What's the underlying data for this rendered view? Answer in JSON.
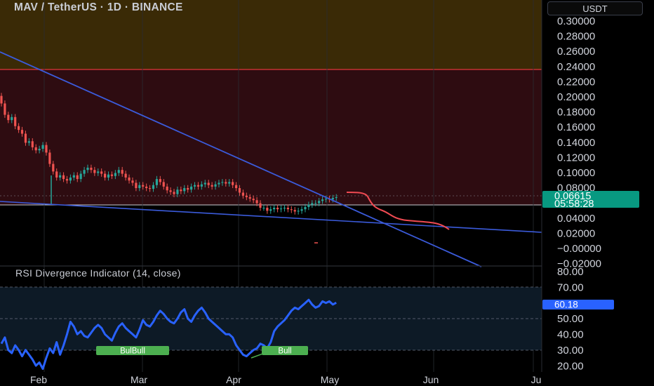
{
  "header": {
    "title": "MAV / TetherUS · 1D · BINANCE",
    "currency_button": "USDT"
  },
  "price_scale": {
    "ticks": [
      "0.30000",
      "0.28000",
      "0.26000",
      "0.24000",
      "0.22000",
      "0.20000",
      "0.18000",
      "0.16000",
      "0.14000",
      "0.12000",
      "0.10000",
      "0.08000",
      "0.06000",
      "0.04000",
      "0.02000",
      "−0.00000",
      "−0.02000"
    ],
    "last_price": "0.06615",
    "countdown": "05:58:28",
    "last_price_color": "#089981"
  },
  "rsi_panel": {
    "title": "RSI Divergence Indicator (14, close)",
    "ticks": [
      "80.00",
      "70.00",
      "60.00",
      "50.00",
      "40.00",
      "30.00",
      "20.00"
    ],
    "current_value": "60.18",
    "value_color": "#2962ff",
    "labels": [
      "BulBull",
      "Bull"
    ]
  },
  "time_axis": {
    "labels": [
      "Feb",
      "Mar",
      "Apr",
      "May",
      "Jun",
      "Ju"
    ]
  },
  "colors": {
    "upper_zone": "#3a2a06",
    "mid_zone": "#2e0c11",
    "zone_border": "#e0353d",
    "trendline": "#3b5bdb",
    "projection": "#f04a52",
    "candle_up": "#26a69a",
    "candle_down": "#ef5350",
    "rsi_line": "#2962ff",
    "bull_label": "#4caf50"
  },
  "chart_data": {
    "type": "candlestick",
    "symbol": "MAV / TetherUS",
    "interval": "1D",
    "exchange": "BINANCE",
    "ylim": [
      -0.025,
      0.31
    ],
    "x": [
      "Jan 22",
      "Jan 23",
      "Jan 24",
      "Jan 25",
      "Jan 26",
      "Jan 27",
      "Jan 28",
      "Jan 29",
      "Jan 30",
      "Jan 31",
      "Feb 1",
      "Feb 2",
      "Feb 3",
      "Feb 4",
      "Feb 5",
      "Feb 6",
      "Feb 7",
      "Feb 8",
      "Feb 9",
      "Feb 10",
      "Feb 11",
      "Feb 12",
      "Feb 13",
      "Feb 14",
      "Feb 15",
      "Feb 16",
      "Feb 17",
      "Feb 18",
      "Feb 19",
      "Feb 20",
      "Feb 21",
      "Feb 22",
      "Feb 23",
      "Feb 24",
      "Feb 25",
      "Feb 26",
      "Feb 27",
      "Feb 28",
      "Mar 1",
      "Mar 2",
      "Mar 3",
      "Mar 4",
      "Mar 5",
      "Mar 6",
      "Mar 7",
      "Mar 8",
      "Mar 9",
      "Mar 10",
      "Mar 11",
      "Mar 12",
      "Mar 13",
      "Mar 14",
      "Mar 15",
      "Mar 16",
      "Mar 17",
      "Mar 18",
      "Mar 19",
      "Mar 20",
      "Mar 21",
      "Mar 22",
      "Mar 23",
      "Mar 24",
      "Mar 25",
      "Mar 26",
      "Mar 27",
      "Mar 28",
      "Mar 29",
      "Mar 30",
      "Mar 31",
      "Apr 1",
      "Apr 2",
      "Apr 3",
      "Apr 4",
      "Apr 5",
      "Apr 6",
      "Apr 7",
      "Apr 8",
      "Apr 9",
      "Apr 10",
      "Apr 11",
      "Apr 12",
      "Apr 13",
      "Apr 14",
      "Apr 15",
      "Apr 16",
      "Apr 17",
      "Apr 18",
      "Apr 19",
      "Apr 20",
      "Apr 21",
      "Apr 22",
      "Apr 23",
      "Apr 24",
      "Apr 25",
      "Apr 26",
      "Apr 27",
      "Apr 28",
      "Apr 29"
    ],
    "close": [
      0.19,
      0.175,
      0.168,
      0.172,
      0.16,
      0.155,
      0.15,
      0.138,
      0.14,
      0.132,
      0.128,
      0.13,
      0.135,
      0.125,
      0.11,
      0.1,
      0.092,
      0.095,
      0.09,
      0.088,
      0.092,
      0.095,
      0.09,
      0.097,
      0.102,
      0.105,
      0.102,
      0.098,
      0.1,
      0.097,
      0.092,
      0.096,
      0.094,
      0.098,
      0.102,
      0.097,
      0.092,
      0.088,
      0.085,
      0.078,
      0.082,
      0.08,
      0.078,
      0.077,
      0.082,
      0.09,
      0.086,
      0.08,
      0.075,
      0.073,
      0.07,
      0.076,
      0.074,
      0.078,
      0.076,
      0.08,
      0.082,
      0.08,
      0.083,
      0.085,
      0.082,
      0.08,
      0.083,
      0.085,
      0.086,
      0.084,
      0.086,
      0.082,
      0.078,
      0.072,
      0.068,
      0.066,
      0.064,
      0.062,
      0.058,
      0.052,
      0.052,
      0.048,
      0.05,
      0.052,
      0.05,
      0.051,
      0.052,
      0.05,
      0.049,
      0.047,
      0.048,
      0.05,
      0.053,
      0.056,
      0.058,
      0.058,
      0.061,
      0.063,
      0.064,
      0.063,
      0.065,
      0.066
    ],
    "rsi": [
      34,
      38,
      30,
      28,
      33,
      30,
      26,
      30,
      27,
      24,
      20,
      22,
      18,
      25,
      31,
      28,
      35,
      27,
      33,
      40,
      48,
      45,
      40,
      42,
      39,
      38,
      41,
      44,
      46,
      44,
      40,
      38,
      36,
      41,
      45,
      47,
      44,
      42,
      40,
      38,
      43,
      49,
      46,
      45,
      48,
      52,
      55,
      53,
      50,
      48,
      47,
      50,
      54,
      56,
      50,
      48,
      52,
      55,
      57,
      54,
      50,
      48,
      46,
      44,
      42,
      40,
      40,
      38,
      33,
      30,
      27,
      26,
      28,
      30,
      31,
      34,
      33,
      31,
      35,
      42,
      45,
      47,
      49,
      52,
      55,
      57,
      56,
      58,
      60,
      62,
      59,
      57,
      58,
      61,
      60,
      61,
      59,
      60.18
    ],
    "horizontal_levels": [
      0.243,
      0.06
    ],
    "series": [
      {
        "name": "RSI Divergence Indicator (14, close)",
        "values": "rsi"
      }
    ]
  }
}
